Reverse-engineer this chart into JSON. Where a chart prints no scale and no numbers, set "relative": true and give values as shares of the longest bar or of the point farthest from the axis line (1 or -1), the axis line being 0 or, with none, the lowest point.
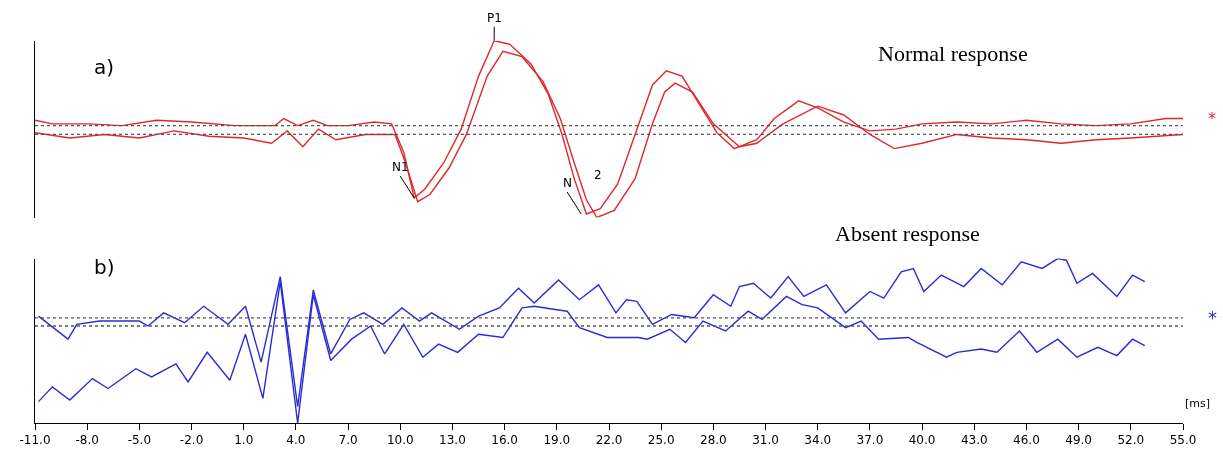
{
  "chart_data": [
    {
      "type": "line",
      "relative": true,
      "xlim": [
        -11,
        55
      ],
      "tick_labels": false,
      "line_style": "solid",
      "marker": "none",
      "series": [
        {
          "color": "#e0272d",
          "x": [
            -11,
            -10,
            -8,
            -6,
            -4,
            -2,
            0.5,
            2.8,
            3.3,
            4.1,
            5,
            5.8,
            7,
            8.5,
            9.5,
            10.2,
            10.8,
            11.4,
            12.5,
            13.5,
            14.5,
            15.4,
            16.3,
            17.5,
            18.5,
            19.3,
            20,
            20.7,
            21.5,
            22.5,
            23.5,
            24.5,
            25.3,
            26.2,
            27.2,
            28.2,
            29.2,
            30.5,
            31.5,
            32.9,
            34,
            35.5,
            37,
            38.5,
            40,
            42,
            44,
            46,
            48,
            50,
            52,
            54,
            55
          ],
          "values": [
            0.55,
            0.53,
            0.53,
            0.52,
            0.55,
            0.54,
            0.52,
            0.52,
            0.56,
            0.52,
            0.55,
            0.52,
            0.52,
            0.54,
            0.53,
            0.37,
            0.11,
            0.16,
            0.31,
            0.5,
            0.8,
            1.0,
            0.98,
            0.87,
            0.7,
            0.47,
            0.22,
            0.02,
            0.05,
            0.19,
            0.47,
            0.75,
            0.83,
            0.8,
            0.64,
            0.48,
            0.39,
            0.44,
            0.56,
            0.66,
            0.62,
            0.54,
            0.49,
            0.5,
            0.53,
            0.54,
            0.53,
            0.55,
            0.53,
            0.52,
            0.53,
            0.56,
            0.56
          ]
        },
        {
          "color": "#e0272d",
          "x": [
            -11,
            -9,
            -7,
            -5,
            -3,
            -1,
            1,
            2.6,
            3.5,
            4.4,
            5.3,
            6.3,
            8,
            9.7,
            10.3,
            11,
            11.7,
            12.8,
            13.8,
            15,
            15.9,
            17,
            18.2,
            19.2,
            20,
            20.7,
            21.3,
            22.3,
            23.5,
            24.5,
            25.2,
            25.8,
            26.8,
            28,
            29.5,
            30.5,
            32,
            34,
            35.5,
            37,
            38.4,
            40,
            42,
            44,
            46,
            48,
            50,
            52,
            55
          ],
          "values": [
            0.48,
            0.45,
            0.47,
            0.45,
            0.49,
            0.46,
            0.45,
            0.42,
            0.49,
            0.4,
            0.5,
            0.44,
            0.47,
            0.47,
            0.31,
            0.09,
            0.13,
            0.28,
            0.47,
            0.8,
            0.94,
            0.91,
            0.77,
            0.56,
            0.31,
            0.1,
            0.0,
            0.04,
            0.22,
            0.53,
            0.71,
            0.76,
            0.71,
            0.53,
            0.4,
            0.42,
            0.53,
            0.63,
            0.58,
            0.47,
            0.39,
            0.42,
            0.47,
            0.45,
            0.44,
            0.42,
            0.44,
            0.45,
            0.47
          ]
        }
      ],
      "ref_lines": [
        {
          "axis": "y",
          "value": 0.52,
          "color": "#555555",
          "line_style": "dotted"
        },
        {
          "axis": "y",
          "value": 0.47,
          "color": "#555555",
          "line_style": "dotted"
        }
      ],
      "annotations": [
        "a)",
        "Normal response",
        "*",
        {
          "text": "P1",
          "x": 15.4,
          "y": 1.0
        },
        {
          "text": "N1",
          "x": 10.8,
          "y": 0.11
        },
        {
          "text": "N",
          "x": 20.4,
          "y": 0.02
        },
        "2"
      ]
    },
    {
      "type": "line",
      "relative": true,
      "xlim": [
        -11,
        55
      ],
      "xticks": [
        {
          "value": -11,
          "label": "-11.0"
        },
        {
          "value": -8,
          "label": "-8.0"
        },
        {
          "value": -5,
          "label": "-5.0"
        },
        {
          "value": -2,
          "label": "-2.0"
        },
        {
          "value": 1,
          "label": "1.0"
        },
        {
          "value": 4,
          "label": "4.0"
        },
        {
          "value": 7,
          "label": "7.0"
        },
        {
          "value": 10,
          "label": "10.0"
        },
        {
          "value": 13,
          "label": "13.0"
        },
        {
          "value": 16,
          "label": "16.0"
        },
        {
          "value": 19,
          "label": "19.0"
        },
        {
          "value": 22,
          "label": "22.0"
        },
        {
          "value": 25,
          "label": "25.0"
        },
        {
          "value": 28,
          "label": "28.0"
        },
        {
          "value": 31,
          "label": "31.0"
        },
        {
          "value": 34,
          "label": "34.0"
        },
        {
          "value": 37,
          "label": "37.0"
        },
        {
          "value": 40,
          "label": "40.0"
        },
        {
          "value": 43,
          "label": "43.0"
        },
        {
          "value": 46,
          "label": "46.0"
        },
        {
          "value": 49,
          "label": "49.0"
        },
        {
          "value": 52,
          "label": "52.0"
        },
        {
          "value": 55,
          "label": "55.0"
        }
      ],
      "tick_labels": "x",
      "line_style": "solid",
      "marker": "none",
      "series": [
        {
          "color": "#2b2bd6",
          "x": [
            -10.8,
            -9.1,
            -8.6,
            -7.3,
            -5.0,
            -4.5,
            -3.6,
            -2.4,
            -1.3,
            0.1,
            1.1,
            2.0,
            3.1,
            4.1,
            5.0,
            6.0,
            7.1,
            7.9,
            9.0,
            10.1,
            11.1,
            11.8,
            13.4,
            14.5,
            15.7,
            16.8,
            17.7,
            19.1,
            20.3,
            21.4,
            22.4,
            23.0,
            23.6,
            24.5,
            25.6,
            26.9,
            28.0,
            29.0,
            29.5,
            30.3,
            31.3,
            32.3,
            33.2,
            34.5,
            35.6,
            37.0,
            37.8,
            38.8,
            39.5,
            40.1,
            41.1,
            42.4,
            43.4,
            44.6,
            45.7,
            46.9,
            47.8,
            48.3,
            48.9,
            49.8,
            51.2,
            52.1,
            52.8
          ],
          "values": [
            0.65,
            0.51,
            0.6,
            0.62,
            0.62,
            0.59,
            0.67,
            0.61,
            0.71,
            0.6,
            0.71,
            0.37,
            0.89,
            0.1,
            0.81,
            0.42,
            0.63,
            0.67,
            0.6,
            0.7,
            0.62,
            0.67,
            0.57,
            0.65,
            0.7,
            0.82,
            0.73,
            0.87,
            0.75,
            0.84,
            0.67,
            0.75,
            0.74,
            0.6,
            0.66,
            0.64,
            0.78,
            0.71,
            0.83,
            0.85,
            0.76,
            0.89,
            0.77,
            0.84,
            0.67,
            0.8,
            0.76,
            0.92,
            0.94,
            0.8,
            0.9,
            0.83,
            0.94,
            0.84,
            0.98,
            0.94,
            1.0,
            0.99,
            0.85,
            0.91,
            0.77,
            0.9,
            0.86
          ]
        },
        {
          "color": "#2b2bd6",
          "x": [
            -10.8,
            -10.0,
            -9.0,
            -7.7,
            -6.8,
            -5.2,
            -4.3,
            -2.9,
            -2.2,
            -1.1,
            0.2,
            1.1,
            2.1,
            3.1,
            4.1,
            5.0,
            6.0,
            7.2,
            8.3,
            9.1,
            10.2,
            11.3,
            12.2,
            13.3,
            14.5,
            15.9,
            17.0,
            17.7,
            18.9,
            19.6,
            20.3,
            21.9,
            23.7,
            24.2,
            25.5,
            26.4,
            27.4,
            28.7,
            30.0,
            30.8,
            32.2,
            33.1,
            34.0,
            35.6,
            36.5,
            37.5,
            39.2,
            39.7,
            41.4,
            42.0,
            43.4,
            44.3,
            45.6,
            46.6,
            47.8,
            48.9,
            50.1,
            51.2,
            52.1,
            52.8
          ],
          "values": [
            0.13,
            0.22,
            0.14,
            0.27,
            0.21,
            0.33,
            0.28,
            0.36,
            0.25,
            0.43,
            0.26,
            0.54,
            0.15,
            0.86,
            0.0,
            0.78,
            0.38,
            0.51,
            0.59,
            0.42,
            0.6,
            0.4,
            0.48,
            0.43,
            0.54,
            0.52,
            0.7,
            0.71,
            0.69,
            0.68,
            0.58,
            0.52,
            0.52,
            0.51,
            0.57,
            0.49,
            0.62,
            0.56,
            0.68,
            0.63,
            0.77,
            0.72,
            0.7,
            0.58,
            0.62,
            0.51,
            0.52,
            0.49,
            0.4,
            0.43,
            0.45,
            0.43,
            0.56,
            0.43,
            0.51,
            0.4,
            0.46,
            0.41,
            0.51,
            0.47
          ]
        }
      ],
      "ref_lines": [
        {
          "axis": "y",
          "value": 0.64,
          "color": "#555555",
          "line_style": "dotted"
        },
        {
          "axis": "y",
          "value": 0.59,
          "color": "#555555",
          "line_style": "dotted"
        }
      ],
      "annotations": [
        "b)",
        "Absent response",
        "*",
        "[ms]"
      ]
    }
  ]
}
